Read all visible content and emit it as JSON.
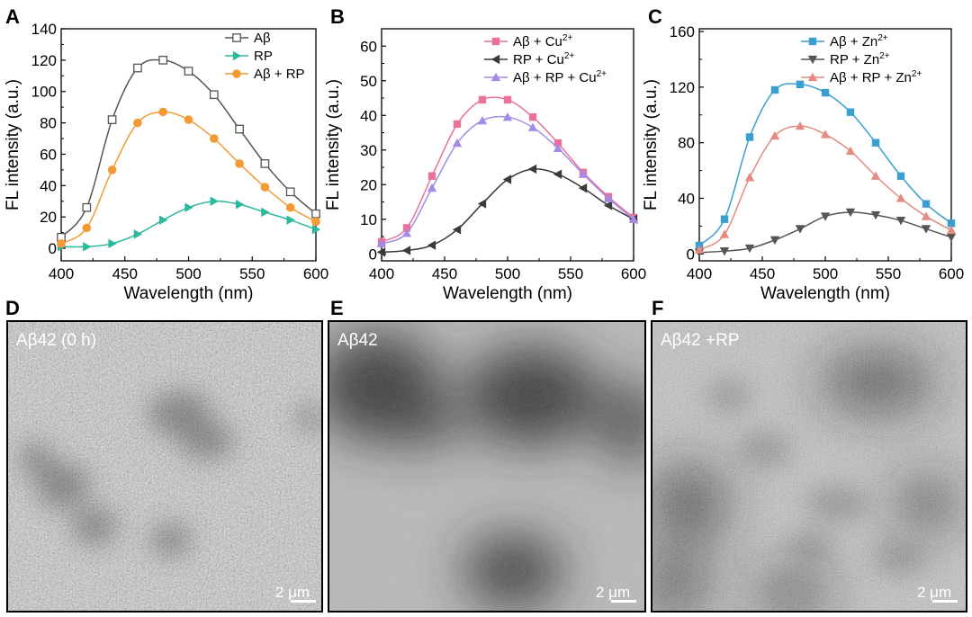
{
  "chart_data": [
    {
      "panel": "A",
      "type": "line",
      "xlabel": "Wavelength (nm)",
      "ylabel": "FL intensity (a.u.)",
      "xlim": [
        400,
        600
      ],
      "ylim": [
        -8,
        140
      ],
      "xticks": [
        400,
        450,
        500,
        550,
        600
      ],
      "yticks": [
        0,
        20,
        40,
        60,
        80,
        100,
        120,
        140
      ],
      "grid": false,
      "legend_position": "top-right",
      "series": [
        {
          "name": "Aβ",
          "color": "#555555",
          "marker": "open-square",
          "x": [
            400,
            420,
            440,
            460,
            480,
            500,
            520,
            540,
            560,
            580,
            600
          ],
          "y": [
            7,
            26,
            82,
            115,
            120,
            113,
            98,
            76,
            54,
            36,
            22
          ]
        },
        {
          "name": "RP",
          "color": "#2bb89c",
          "marker": "triangle-right",
          "x": [
            400,
            420,
            440,
            460,
            480,
            500,
            520,
            540,
            560,
            580,
            600
          ],
          "y": [
            1,
            1,
            3,
            9,
            18,
            26,
            30,
            28,
            23,
            18,
            12
          ]
        },
        {
          "name": "Aβ + RP",
          "color": "#f39a34",
          "marker": "circle",
          "x": [
            400,
            420,
            440,
            460,
            480,
            500,
            520,
            540,
            560,
            580,
            600
          ],
          "y": [
            3,
            13,
            50,
            80,
            87,
            82,
            70,
            54,
            39,
            26,
            17
          ]
        }
      ]
    },
    {
      "panel": "B",
      "type": "line",
      "xlabel": "Wavelength (nm)",
      "ylabel": "FL intensity (a.u.)",
      "xlim": [
        400,
        600
      ],
      "ylim": [
        -2,
        65
      ],
      "xticks": [
        400,
        450,
        500,
        550,
        600
      ],
      "yticks": [
        0,
        10,
        20,
        30,
        40,
        50,
        60
      ],
      "grid": false,
      "legend_position": "top-right",
      "series": [
        {
          "name": "Aβ + Cu",
          "sup": "2+",
          "color": "#e8729a",
          "marker": "square",
          "x": [
            400,
            420,
            440,
            460,
            480,
            500,
            520,
            540,
            560,
            580,
            600
          ],
          "y": [
            3.5,
            7.5,
            22.5,
            37.5,
            44.5,
            44.5,
            39.5,
            32,
            23.5,
            16.5,
            10.5
          ]
        },
        {
          "name": "RP + Cu",
          "sup": "2+",
          "color": "#3a3a3a",
          "marker": "triangle-left",
          "x": [
            400,
            420,
            440,
            460,
            480,
            500,
            520,
            540,
            560,
            580,
            600
          ],
          "y": [
            0.5,
            1,
            2.5,
            7,
            14.5,
            21.5,
            24.5,
            23,
            19,
            14,
            10
          ]
        },
        {
          "name": "Aβ + RP + Cu",
          "sup": "2+",
          "color": "#a48ce6",
          "marker": "triangle-up",
          "x": [
            400,
            420,
            440,
            460,
            480,
            500,
            520,
            540,
            560,
            580,
            600
          ],
          "y": [
            3,
            6,
            19,
            32,
            38.5,
            39.5,
            36.5,
            30.5,
            23,
            16,
            10
          ]
        }
      ]
    },
    {
      "panel": "C",
      "type": "line",
      "xlabel": "Wavelength (nm)",
      "ylabel": "FL intensity (a.u.)",
      "xlim": [
        400,
        600
      ],
      "ylim": [
        -5,
        162
      ],
      "xticks": [
        400,
        450,
        500,
        550,
        600
      ],
      "yticks": [
        0,
        40,
        80,
        120,
        160
      ],
      "grid": false,
      "legend_position": "top-right",
      "series": [
        {
          "name": "Aβ + Zn",
          "sup": "2+",
          "color": "#3a9fd0",
          "marker": "square",
          "x": [
            400,
            420,
            440,
            460,
            480,
            500,
            520,
            540,
            560,
            580,
            600
          ],
          "y": [
            6,
            25,
            84,
            118,
            122,
            116,
            102,
            80,
            56,
            36,
            22
          ]
        },
        {
          "name": "RP + Zn",
          "sup": "2+",
          "color": "#555555",
          "marker": "triangle-down",
          "x": [
            400,
            420,
            440,
            460,
            480,
            500,
            520,
            540,
            560,
            580,
            600
          ],
          "y": [
            1,
            2,
            4,
            10,
            18,
            27,
            30,
            28,
            24,
            18,
            12
          ]
        },
        {
          "name": "Aβ + RP + Zn",
          "sup": "2+",
          "color": "#e48a80",
          "marker": "triangle-up",
          "x": [
            400,
            420,
            440,
            460,
            480,
            500,
            520,
            540,
            560,
            580,
            600
          ],
          "y": [
            3,
            14,
            55,
            85,
            92,
            86,
            74,
            56,
            40,
            27,
            17
          ]
        }
      ]
    }
  ],
  "images": [
    {
      "panel": "D",
      "label": "Aβ42 (0 h)",
      "scale_bar": "2 μm"
    },
    {
      "panel": "E",
      "label": "Aβ42",
      "scale_bar": "2 μm"
    },
    {
      "panel": "F",
      "label": "Aβ42 +RP",
      "scale_bar": "2 μm"
    }
  ]
}
